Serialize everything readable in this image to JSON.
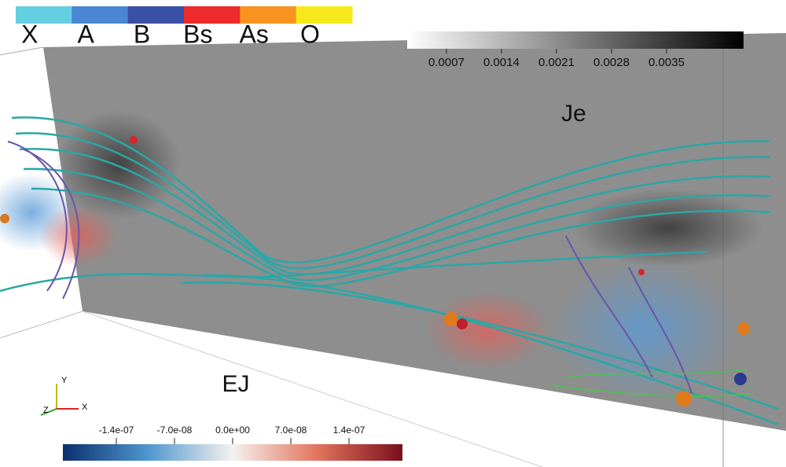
{
  "category_legend": {
    "labels": [
      "X",
      "A",
      "B",
      "Bs",
      "As",
      "O"
    ],
    "colors": [
      "#64cfe0",
      "#4a86d1",
      "#3a4fa6",
      "#ee2a2a",
      "#f7931e",
      "#f7ea1c"
    ]
  },
  "je_colorbar": {
    "title": "Je",
    "ticks": [
      "0.0007",
      "0.0014",
      "0.0021",
      "0.0028",
      "0.0035"
    ]
  },
  "ej_colorbar": {
    "title": "EJ",
    "ticks": [
      "-1.4e-07",
      "-7.0e-08",
      "0.0e+00",
      "7.0e-08",
      "1.4e-07"
    ]
  },
  "axes_triad": {
    "x": "X",
    "y": "Y",
    "z": "Z"
  }
}
